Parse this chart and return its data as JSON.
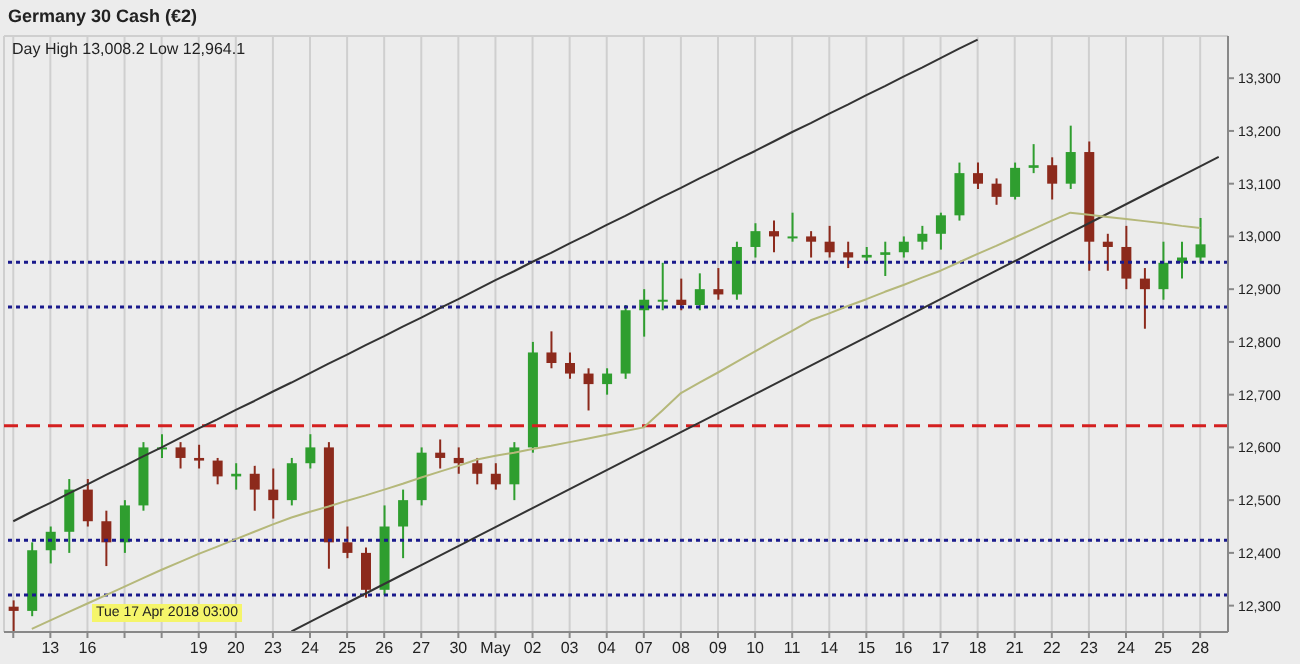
{
  "chart_data": {
    "type": "candlestick",
    "title": "Germany 30 Cash (€2)",
    "annotations": [
      "Day High 13,008.2 Low 12,964.1",
      "Tue 17 Apr 2018 03:00"
    ],
    "categories": [
      null,
      null,
      "13",
      null,
      "16",
      null,
      null,
      null,
      null,
      null,
      "19",
      null,
      "20",
      null,
      "23",
      null,
      "24",
      null,
      "25",
      null,
      "26",
      null,
      "27",
      null,
      "30",
      null,
      "May",
      null,
      "02",
      null,
      "03",
      null,
      "04",
      null,
      "07",
      null,
      "08",
      null,
      "09",
      null,
      "10",
      null,
      "11",
      null,
      "14",
      null,
      "15",
      null,
      "16",
      null,
      "17",
      null,
      "18",
      null,
      "21",
      null,
      "22",
      null,
      "23",
      null,
      "24",
      null,
      "25",
      null,
      "28",
      null
    ],
    "ohlc": [
      [
        12298,
        12310,
        12250,
        12290
      ],
      [
        12290,
        12420,
        12280,
        12405
      ],
      [
        12405,
        12450,
        12380,
        12440
      ],
      [
        12440,
        12540,
        12400,
        12520
      ],
      [
        12520,
        12540,
        12450,
        12460
      ],
      [
        12460,
        12480,
        12375,
        12420
      ],
      [
        12420,
        12500,
        12400,
        12490
      ],
      [
        12490,
        12610,
        12480,
        12600
      ],
      [
        12600,
        12625,
        12580,
        12600
      ],
      [
        12600,
        12610,
        12560,
        12580
      ],
      [
        12580,
        12605,
        12560,
        12575
      ],
      [
        12575,
        12580,
        12530,
        12545
      ],
      [
        12545,
        12570,
        12520,
        12550
      ],
      [
        12550,
        12565,
        12480,
        12520
      ],
      [
        12520,
        12560,
        12465,
        12500
      ],
      [
        12500,
        12580,
        12490,
        12570
      ],
      [
        12570,
        12625,
        12560,
        12600
      ],
      [
        12600,
        12610,
        12370,
        12420
      ],
      [
        12420,
        12450,
        12390,
        12400
      ],
      [
        12400,
        12410,
        12315,
        12330
      ],
      [
        12330,
        12490,
        12320,
        12450
      ],
      [
        12450,
        12520,
        12390,
        12500
      ],
      [
        12500,
        12600,
        12490,
        12590
      ],
      [
        12590,
        12615,
        12560,
        12580
      ],
      [
        12580,
        12600,
        12550,
        12570
      ],
      [
        12570,
        12580,
        12530,
        12550
      ],
      [
        12550,
        12570,
        12520,
        12530
      ],
      [
        12530,
        12610,
        12500,
        12600
      ],
      [
        12600,
        12800,
        12590,
        12780
      ],
      [
        12780,
        12820,
        12750,
        12760
      ],
      [
        12760,
        12780,
        12730,
        12740
      ],
      [
        12740,
        12750,
        12670,
        12720
      ],
      [
        12720,
        12750,
        12700,
        12740
      ],
      [
        12740,
        12870,
        12730,
        12860
      ],
      [
        12860,
        12900,
        12810,
        12880
      ],
      [
        12880,
        12950,
        12860,
        12880
      ],
      [
        12880,
        12920,
        12860,
        12870
      ],
      [
        12870,
        12930,
        12860,
        12900
      ],
      [
        12900,
        12940,
        12880,
        12890
      ],
      [
        12890,
        12990,
        12880,
        12980
      ],
      [
        12980,
        13025,
        12960,
        13010
      ],
      [
        13010,
        13030,
        12970,
        13000
      ],
      [
        13000,
        13045,
        12990,
        13000
      ],
      [
        13000,
        13010,
        12960,
        12990
      ],
      [
        12990,
        13020,
        12960,
        12970
      ],
      [
        12970,
        12990,
        12940,
        12960
      ],
      [
        12960,
        12980,
        12950,
        12965
      ],
      [
        12965,
        12990,
        12925,
        12970
      ],
      [
        12970,
        13000,
        12960,
        12990
      ],
      [
        12990,
        13020,
        12975,
        13005
      ],
      [
        13005,
        13045,
        12975,
        13040
      ],
      [
        13040,
        13140,
        13030,
        13120
      ],
      [
        13120,
        13140,
        13090,
        13100
      ],
      [
        13100,
        13110,
        13060,
        13075
      ],
      [
        13075,
        13140,
        13070,
        13130
      ],
      [
        13130,
        13175,
        13120,
        13135
      ],
      [
        13135,
        13150,
        13070,
        13100
      ],
      [
        13100,
        13210,
        13090,
        13160
      ],
      [
        13160,
        13180,
        12935,
        12990
      ],
      [
        12990,
        13005,
        12935,
        12980
      ],
      [
        12980,
        13020,
        12900,
        12920
      ],
      [
        12920,
        12940,
        12825,
        12900
      ],
      [
        12900,
        12990,
        12880,
        12950
      ],
      [
        12950,
        12990,
        12920,
        12960
      ],
      [
        12960,
        13035,
        12950,
        12985
      ],
      null
    ],
    "series": [
      {
        "type": "line",
        "color": "#333333",
        "values": [
          12460,
          12478,
          12495,
          12513,
          12530,
          12548,
          12565,
          12583,
          12600,
          12618,
          12636,
          12653,
          12671,
          12688,
          12706,
          12723,
          12741,
          12759,
          12776,
          12794,
          12811,
          12829,
          12846,
          12864,
          12881,
          12899,
          12917,
          12934,
          12952,
          12969,
          12987,
          13004,
          13022,
          13039,
          13057,
          13075,
          13092,
          13110,
          13127,
          13145,
          13162,
          13180,
          13198,
          13215,
          13233,
          13250,
          13268,
          13285,
          13303,
          13320,
          13338,
          13356,
          13373,
          null,
          null,
          null,
          null,
          null,
          null,
          null,
          null,
          null,
          null,
          null,
          null,
          null
        ]
      },
      {
        "type": "line",
        "color": "#333333",
        "values": [
          null,
          null,
          null,
          null,
          null,
          null,
          null,
          null,
          null,
          null,
          null,
          null,
          null,
          null,
          null,
          12251,
          12269,
          12287,
          12305,
          12323,
          12341,
          12359,
          12377,
          12395,
          12413,
          12431,
          12449,
          12467,
          12485,
          12503,
          12521,
          12539,
          12557,
          12575,
          12593,
          12611,
          12629,
          12647,
          12665,
          12683,
          12701,
          12719,
          12737,
          12755,
          12773,
          12791,
          12809,
          12827,
          12845,
          12863,
          12881,
          12899,
          12917,
          12935,
          12953,
          12971,
          12989,
          13007,
          13025,
          13043,
          13061,
          13079,
          13097,
          13115,
          13133,
          13151
        ]
      },
      {
        "type": "line",
        "color": "#b5b87a",
        "values": [
          null,
          12256,
          12272,
          12288,
          12304,
          12320,
          12336,
          12352,
          12368,
          12383,
          12398,
          12412,
          12426,
          12440,
          12454,
          12467,
          12478,
          12488,
          12499,
          12509,
          12520,
          12531,
          12543,
          12554,
          12565,
          12577,
          12584,
          12590,
          12597,
          12603,
          12610,
          12617,
          12624,
          12631,
          12638,
          12670,
          12703,
          12723,
          12742,
          12762,
          12782,
          12802,
          12821,
          12841,
          12854,
          12868,
          12881,
          12895,
          12908,
          12922,
          12935,
          12951,
          12967,
          12982,
          12998,
          13014,
          13030,
          13045,
          13041,
          13037,
          13033,
          13029,
          13025,
          13020,
          13016,
          null
        ]
      }
    ],
    "ylim": [
      12250,
      13380
    ],
    "yticks": [
      {
        "value": 12300,
        "label": "12,300"
      },
      {
        "value": 12400,
        "label": "12,400"
      },
      {
        "value": 12500,
        "label": "12,500"
      },
      {
        "value": 12600,
        "label": "12,600"
      },
      {
        "value": 12700,
        "label": "12,700"
      },
      {
        "value": 12800,
        "label": "12,800"
      },
      {
        "value": 12900,
        "label": "12,900"
      },
      {
        "value": 13000,
        "label": "13,000"
      },
      {
        "value": 13100,
        "label": "13,100"
      },
      {
        "value": 13200,
        "label": "13,200"
      },
      {
        "value": 13300,
        "label": "13,300"
      }
    ],
    "ref_lines": [
      {
        "axis": "y",
        "value": 12951,
        "color": "#1a1a8c",
        "line_style": "dotted"
      },
      {
        "axis": "y",
        "value": 12866,
        "color": "#1a1a8c",
        "line_style": "dotted"
      },
      {
        "axis": "y",
        "value": 12641,
        "color": "#d42020",
        "line_style": "dashed"
      },
      {
        "axis": "y",
        "value": 12424,
        "color": "#1a1a8c",
        "line_style": "dotted"
      },
      {
        "axis": "y",
        "value": 12320,
        "color": "#1a1a8c",
        "line_style": "dotted"
      }
    ],
    "grid": true
  }
}
